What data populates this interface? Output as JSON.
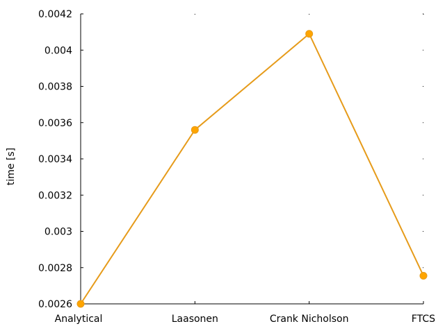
{
  "chart_data": {
    "type": "line",
    "title": "",
    "xlabel": "",
    "ylabel": "time [s]",
    "categories": [
      "Analytical",
      "Laasonen",
      "Crank Nicholson",
      "FTCS"
    ],
    "series": [
      {
        "values": [
          0.0026,
          0.00356,
          0.00409,
          0.002755
        ]
      }
    ],
    "ylim": [
      0.0026,
      0.0042
    ],
    "yticks": [
      "0.0026",
      "0.0028",
      "0.003",
      "0.0032",
      "0.0034",
      "0.0036",
      "0.0038",
      "0.004",
      "0.0042"
    ],
    "grid": false,
    "legend": "none",
    "colors": {
      "series": "#ffa500",
      "line": "#e69b1a",
      "axis": "#000000"
    }
  }
}
